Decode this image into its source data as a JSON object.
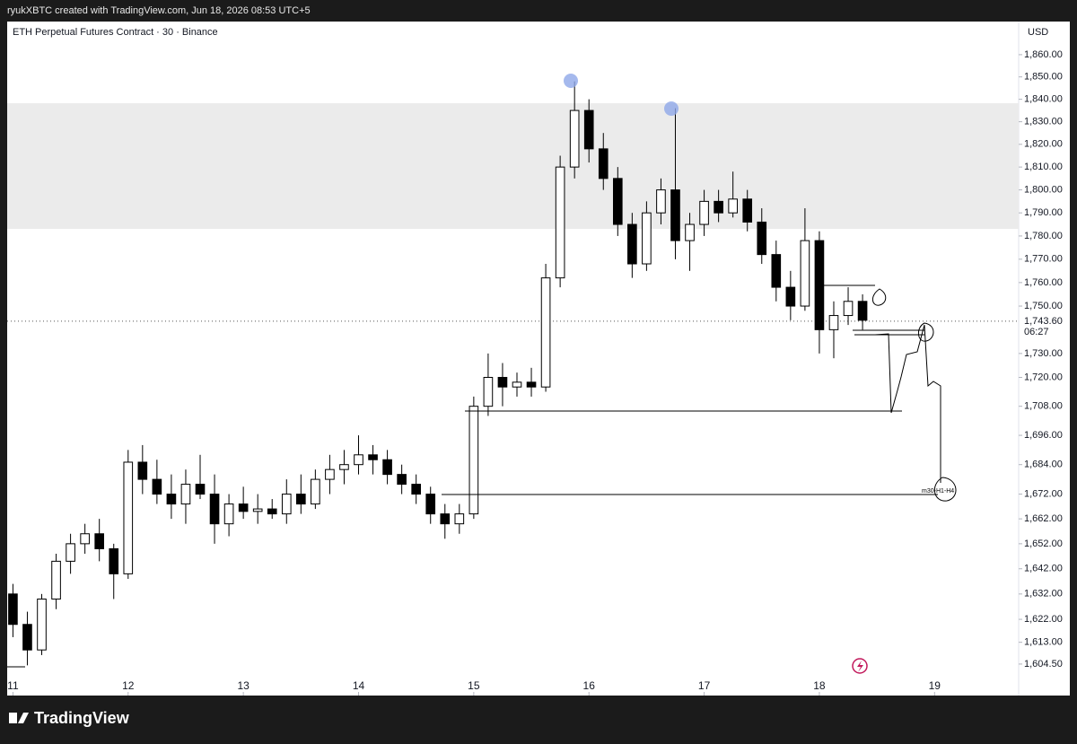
{
  "header": {
    "text": "ryukXBTC created with TradingView.com, Jun 18, 2026 08:53 UTC+5"
  },
  "footer": {
    "brand": "TradingView"
  },
  "chart_data": {
    "type": "candlestick",
    "title": "ETH Perpetual Futures Contract · 30 · Binance",
    "currency": "USD",
    "log_scale": true,
    "up_color": "#ffffff",
    "down_color": "#000000",
    "outline_color": "#000000",
    "x": [
      11.0,
      11.125,
      11.25,
      11.375,
      11.5,
      11.625,
      11.75,
      11.875,
      12.0,
      12.125,
      12.25,
      12.375,
      12.5,
      12.625,
      12.75,
      12.875,
      13.0,
      13.125,
      13.25,
      13.375,
      13.5,
      13.625,
      13.75,
      13.875,
      14.0,
      14.125,
      14.25,
      14.375,
      14.5,
      14.625,
      14.75,
      14.875,
      15.0,
      15.125,
      15.25,
      15.375,
      15.5,
      15.625,
      15.75,
      15.875,
      16.0,
      16.125,
      16.25,
      16.375,
      16.5,
      16.625,
      16.75,
      16.875,
      17.0,
      17.125,
      17.25,
      17.375,
      17.5,
      17.625,
      17.75,
      17.875,
      18.0,
      18.125,
      18.25,
      18.375
    ],
    "open": [
      1632,
      1620,
      1610,
      1630,
      1645,
      1652,
      1656,
      1650,
      1640,
      1685,
      1678,
      1672,
      1668,
      1676,
      1672,
      1660,
      1668,
      1665,
      1666,
      1664,
      1672,
      1668,
      1678,
      1682,
      1684,
      1688,
      1686,
      1680,
      1676,
      1672,
      1664,
      1660,
      1664,
      1708,
      1720,
      1716,
      1718,
      1716,
      1762,
      1810,
      1835,
      1818,
      1805,
      1785,
      1768,
      1790,
      1800,
      1778,
      1785,
      1795,
      1790,
      1796,
      1786,
      1772,
      1758,
      1750,
      1778,
      1740,
      1746,
      1752
    ],
    "high": [
      1636,
      1625,
      1632,
      1648,
      1656,
      1660,
      1662,
      1652,
      1690,
      1692,
      1686,
      1680,
      1682,
      1688,
      1680,
      1672,
      1675,
      1672,
      1670,
      1678,
      1680,
      1682,
      1688,
      1690,
      1696,
      1692,
      1690,
      1684,
      1680,
      1675,
      1668,
      1668,
      1712,
      1730,
      1726,
      1722,
      1724,
      1768,
      1815,
      1848,
      1840,
      1825,
      1810,
      1790,
      1795,
      1805,
      1836,
      1790,
      1800,
      1800,
      1808,
      1800,
      1792,
      1778,
      1765,
      1792,
      1782,
      1752,
      1758,
      1755
    ],
    "low": [
      1615,
      1604,
      1608,
      1626,
      1640,
      1648,
      1645,
      1630,
      1638,
      1672,
      1668,
      1662,
      1660,
      1670,
      1652,
      1655,
      1662,
      1660,
      1662,
      1660,
      1664,
      1666,
      1672,
      1676,
      1680,
      1680,
      1676,
      1672,
      1668,
      1660,
      1654,
      1656,
      1662,
      1704,
      1708,
      1712,
      1712,
      1714,
      1758,
      1805,
      1812,
      1800,
      1780,
      1762,
      1765,
      1785,
      1770,
      1765,
      1780,
      1786,
      1788,
      1782,
      1768,
      1752,
      1744,
      1748,
      1730,
      1728,
      1742,
      1740
    ],
    "close": [
      1620,
      1610,
      1630,
      1645,
      1652,
      1656,
      1650,
      1640,
      1685,
      1678,
      1672,
      1668,
      1676,
      1672,
      1660,
      1668,
      1665,
      1666,
      1664,
      1672,
      1668,
      1678,
      1682,
      1684,
      1688,
      1686,
      1680,
      1676,
      1672,
      1664,
      1660,
      1664,
      1708,
      1720,
      1716,
      1718,
      1716,
      1762,
      1810,
      1835,
      1818,
      1805,
      1785,
      1768,
      1790,
      1800,
      1778,
      1785,
      1795,
      1790,
      1796,
      1786,
      1772,
      1758,
      1750,
      1778,
      1740,
      1746,
      1752,
      1744
    ],
    "xlim": [
      10.95,
      19.73
    ],
    "xticks": [
      11,
      12,
      13,
      14,
      15,
      16,
      17,
      18,
      19
    ],
    "ylim": [
      1592.3,
      1875
    ],
    "yticks": [
      {
        "value": 1604.5,
        "label": "1,604.50"
      },
      {
        "value": 1613,
        "label": "1,613.00"
      },
      {
        "value": 1622,
        "label": "1,622.00"
      },
      {
        "value": 1632,
        "label": "1,632.00"
      },
      {
        "value": 1642,
        "label": "1,642.00"
      },
      {
        "value": 1652,
        "label": "1,652.00"
      },
      {
        "value": 1662,
        "label": "1,662.00"
      },
      {
        "value": 1672,
        "label": "1,672.00"
      },
      {
        "value": 1684,
        "label": "1,684.00"
      },
      {
        "value": 1696,
        "label": "1,696.00"
      },
      {
        "value": 1708,
        "label": "1,708.00"
      },
      {
        "value": 1720,
        "label": "1,720.00"
      },
      {
        "value": 1730,
        "label": "1,730.00"
      },
      {
        "value": 1750,
        "label": "1,750.00"
      },
      {
        "value": 1760,
        "label": "1,760.00"
      },
      {
        "value": 1770,
        "label": "1,770.00"
      },
      {
        "value": 1780,
        "label": "1,780.00"
      },
      {
        "value": 1790,
        "label": "1,790.00"
      },
      {
        "value": 1800,
        "label": "1,800.00"
      },
      {
        "value": 1810,
        "label": "1,810.00"
      },
      {
        "value": 1820,
        "label": "1,820.00"
      },
      {
        "value": 1830,
        "label": "1,830.00"
      },
      {
        "value": 1840,
        "label": "1,840.00"
      },
      {
        "value": 1850,
        "label": "1,850.00"
      },
      {
        "value": 1860,
        "label": "1,860.00"
      }
    ],
    "last_price": {
      "value": 1743.6,
      "label": "1,743.60"
    },
    "countdown": "06:27",
    "annotation": "m30-H1-H4"
  }
}
